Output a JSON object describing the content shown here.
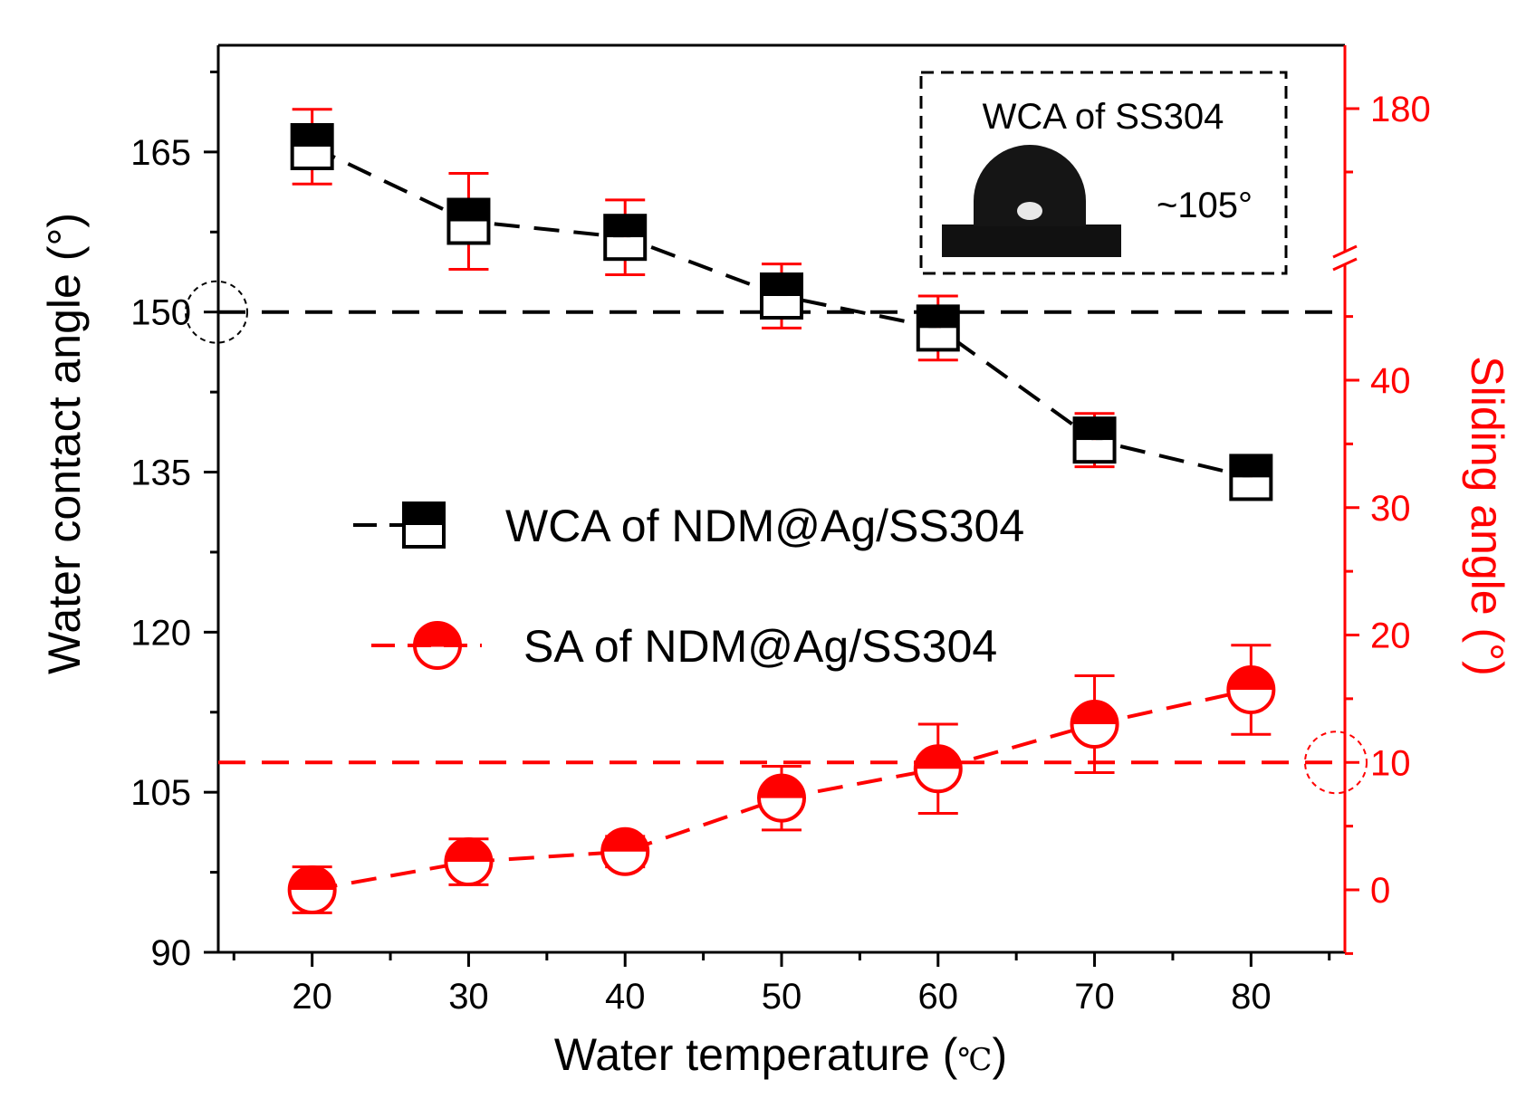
{
  "chart_data": {
    "type": "line",
    "title": "",
    "xlabel": "Water temperature (",
    "xlabel_unit": "℃",
    "xlabel_close": ")",
    "ylabel_left": "Water contact angle (°)",
    "ylabel_right": "Sliding angle (°)",
    "x": [
      20,
      30,
      40,
      50,
      60,
      70,
      80
    ],
    "x_ticks": [
      "20",
      "30",
      "40",
      "50",
      "60",
      "70",
      "80"
    ],
    "xlim": [
      14,
      86
    ],
    "ylim_left": [
      90,
      175
    ],
    "y_ticks_left": [
      "90",
      "105",
      "120",
      "135",
      "150",
      "165"
    ],
    "y_ticks_right": [
      "0",
      "10",
      "20",
      "30",
      "40",
      "180"
    ],
    "right_axis_break": "lower segment 0–45, upper segment shows 180",
    "series": [
      {
        "name": "WCA of NDM@Ag/SS304",
        "axis": "left",
        "color": "#000000",
        "marker": "half-filled-square",
        "values": [
          165.5,
          158.5,
          157,
          151.5,
          148.5,
          138,
          134.5
        ],
        "error": [
          3.5,
          4.5,
          3.5,
          3,
          3,
          2.5,
          2
        ]
      },
      {
        "name": "SA of NDM@Ag/SS304",
        "axis": "right",
        "color": "#ff0000",
        "marker": "half-filled-circle",
        "values": [
          0,
          2.2,
          3,
          7.2,
          9.5,
          13,
          15.7
        ],
        "error": [
          1.8,
          1.8,
          1.2,
          2.5,
          3.5,
          3.8,
          3.5
        ]
      }
    ],
    "reference_lines": [
      {
        "axis": "left",
        "value": 150,
        "color": "#000000",
        "style": "dashed",
        "circled_tick": "150"
      },
      {
        "axis": "right",
        "value": 10,
        "color": "#ff0000",
        "style": "dashed",
        "circled_tick": "10"
      }
    ],
    "inset": {
      "title": "WCA of SS304",
      "angle_label": "~105°"
    },
    "legend_position": "center"
  }
}
